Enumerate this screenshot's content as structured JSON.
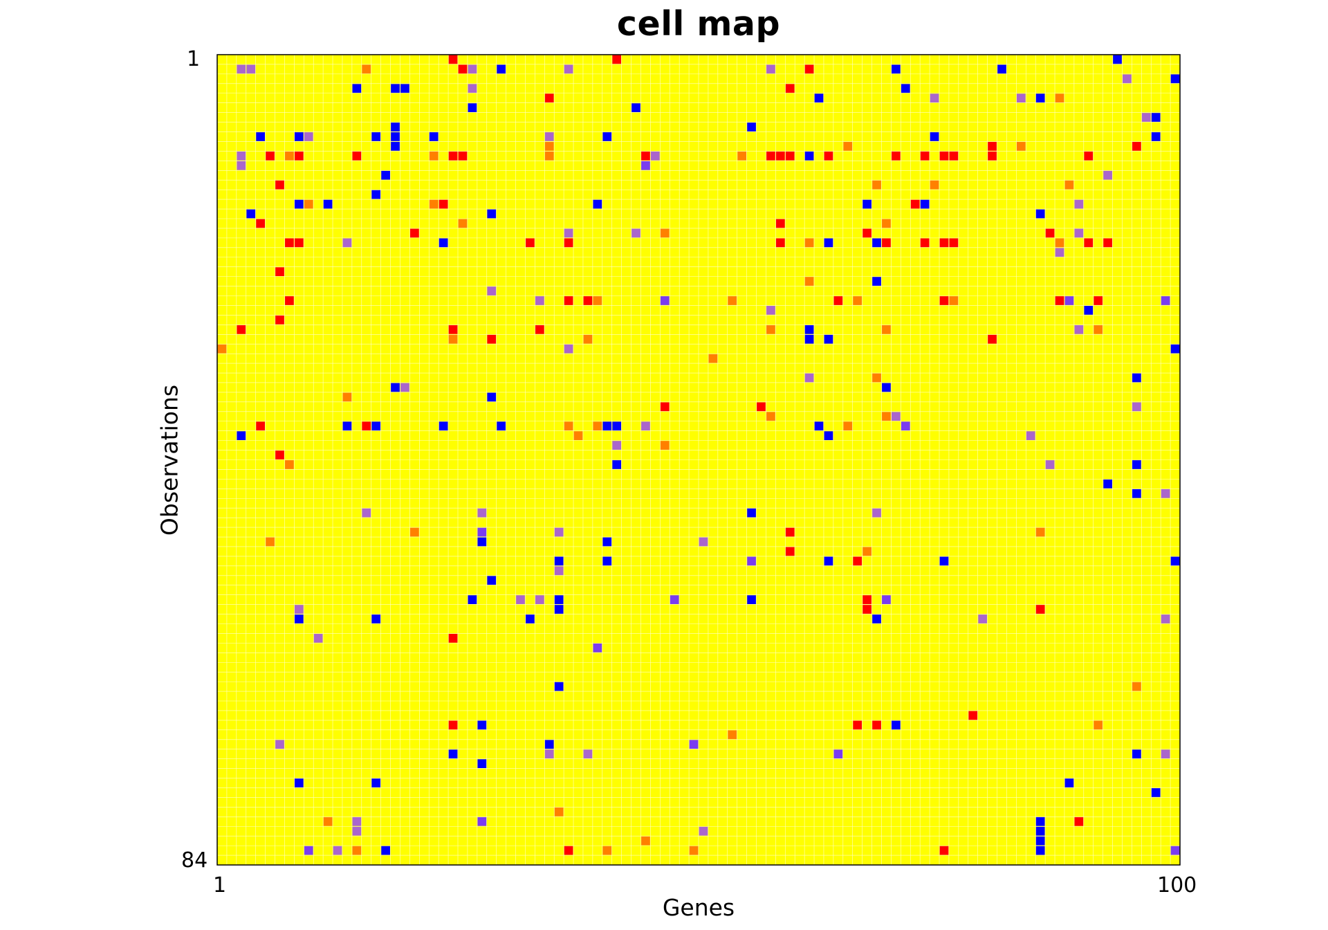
{
  "chart_data": {
    "type": "heatmap",
    "title": "cell map",
    "xlabel": "Genes",
    "ylabel": "Observations",
    "x_tick_labels": [
      "1",
      "100"
    ],
    "y_tick_labels": [
      "1",
      "84"
    ],
    "xlim": [
      1,
      100
    ],
    "ylim": [
      1,
      84
    ],
    "n_cols": 100,
    "n_rows": 84,
    "grid": true,
    "legend": "none",
    "background_value": 0,
    "colors": {
      "0": "#ffff00",
      "1": "#ff0000",
      "2": "#ff8000",
      "3": "#aa66cc",
      "4": "#7a3cf0",
      "5": "#0000ff",
      "grid": "#ffffcc",
      "frame": "#000000"
    },
    "cells": [
      [
        1,
        25,
        1
      ],
      [
        1,
        42,
        1
      ],
      [
        1,
        94,
        5
      ],
      [
        2,
        3,
        3
      ],
      [
        2,
        4,
        3
      ],
      [
        2,
        16,
        2
      ],
      [
        2,
        26,
        1
      ],
      [
        2,
        27,
        3
      ],
      [
        2,
        30,
        5
      ],
      [
        2,
        37,
        3
      ],
      [
        2,
        58,
        3
      ],
      [
        2,
        62,
        1
      ],
      [
        2,
        71,
        5
      ],
      [
        2,
        82,
        5
      ],
      [
        3,
        95,
        3
      ],
      [
        3,
        100,
        5
      ],
      [
        4,
        15,
        5
      ],
      [
        4,
        19,
        5
      ],
      [
        4,
        20,
        5
      ],
      [
        4,
        27,
        3
      ],
      [
        4,
        60,
        1
      ],
      [
        4,
        72,
        5
      ],
      [
        5,
        35,
        1
      ],
      [
        5,
        63,
        5
      ],
      [
        5,
        75,
        3
      ],
      [
        5,
        84,
        3
      ],
      [
        5,
        86,
        5
      ],
      [
        5,
        88,
        2
      ],
      [
        6,
        27,
        5
      ],
      [
        6,
        44,
        5
      ],
      [
        7,
        97,
        3
      ],
      [
        7,
        98,
        5
      ],
      [
        8,
        19,
        5
      ],
      [
        8,
        56,
        5
      ],
      [
        9,
        5,
        5
      ],
      [
        9,
        9,
        5
      ],
      [
        9,
        10,
        3
      ],
      [
        9,
        17,
        5
      ],
      [
        9,
        19,
        5
      ],
      [
        9,
        23,
        5
      ],
      [
        9,
        35,
        3
      ],
      [
        9,
        41,
        5
      ],
      [
        9,
        75,
        5
      ],
      [
        9,
        98,
        5
      ],
      [
        10,
        19,
        5
      ],
      [
        10,
        35,
        2
      ],
      [
        10,
        66,
        2
      ],
      [
        10,
        81,
        1
      ],
      [
        10,
        84,
        2
      ],
      [
        10,
        96,
        1
      ],
      [
        11,
        3,
        3
      ],
      [
        11,
        6,
        1
      ],
      [
        11,
        8,
        2
      ],
      [
        11,
        9,
        1
      ],
      [
        11,
        15,
        1
      ],
      [
        11,
        23,
        2
      ],
      [
        11,
        25,
        1
      ],
      [
        11,
        26,
        1
      ],
      [
        11,
        35,
        2
      ],
      [
        11,
        45,
        1
      ],
      [
        11,
        46,
        3
      ],
      [
        11,
        55,
        2
      ],
      [
        11,
        58,
        1
      ],
      [
        11,
        59,
        1
      ],
      [
        11,
        60,
        1
      ],
      [
        11,
        62,
        5
      ],
      [
        11,
        64,
        1
      ],
      [
        11,
        71,
        1
      ],
      [
        11,
        74,
        1
      ],
      [
        11,
        76,
        1
      ],
      [
        11,
        77,
        1
      ],
      [
        11,
        81,
        1
      ],
      [
        11,
        91,
        1
      ],
      [
        12,
        3,
        3
      ],
      [
        12,
        45,
        4
      ],
      [
        13,
        18,
        5
      ],
      [
        13,
        93,
        3
      ],
      [
        14,
        7,
        1
      ],
      [
        14,
        69,
        2
      ],
      [
        14,
        75,
        2
      ],
      [
        14,
        89,
        2
      ],
      [
        15,
        17,
        5
      ],
      [
        16,
        9,
        5
      ],
      [
        16,
        10,
        2
      ],
      [
        16,
        12,
        5
      ],
      [
        16,
        23,
        2
      ],
      [
        16,
        24,
        1
      ],
      [
        16,
        40,
        5
      ],
      [
        16,
        68,
        5
      ],
      [
        16,
        73,
        1
      ],
      [
        16,
        74,
        5
      ],
      [
        16,
        90,
        3
      ],
      [
        17,
        4,
        5
      ],
      [
        17,
        29,
        5
      ],
      [
        17,
        86,
        5
      ],
      [
        18,
        5,
        1
      ],
      [
        18,
        26,
        2
      ],
      [
        18,
        59,
        1
      ],
      [
        18,
        70,
        2
      ],
      [
        19,
        21,
        1
      ],
      [
        19,
        37,
        3
      ],
      [
        19,
        44,
        3
      ],
      [
        19,
        47,
        2
      ],
      [
        19,
        68,
        1
      ],
      [
        19,
        87,
        1
      ],
      [
        19,
        90,
        3
      ],
      [
        20,
        8,
        1
      ],
      [
        20,
        9,
        1
      ],
      [
        20,
        14,
        3
      ],
      [
        20,
        24,
        5
      ],
      [
        20,
        33,
        1
      ],
      [
        20,
        37,
        1
      ],
      [
        20,
        59,
        1
      ],
      [
        20,
        62,
        2
      ],
      [
        20,
        64,
        5
      ],
      [
        20,
        69,
        5
      ],
      [
        20,
        70,
        1
      ],
      [
        20,
        74,
        1
      ],
      [
        20,
        76,
        1
      ],
      [
        20,
        77,
        1
      ],
      [
        20,
        88,
        2
      ],
      [
        20,
        91,
        1
      ],
      [
        20,
        93,
        1
      ],
      [
        21,
        88,
        3
      ],
      [
        23,
        7,
        1
      ],
      [
        24,
        62,
        2
      ],
      [
        24,
        69,
        5
      ],
      [
        25,
        29,
        3
      ],
      [
        26,
        8,
        1
      ],
      [
        26,
        34,
        3
      ],
      [
        26,
        37,
        1
      ],
      [
        26,
        39,
        1
      ],
      [
        26,
        40,
        2
      ],
      [
        26,
        47,
        4
      ],
      [
        26,
        54,
        2
      ],
      [
        26,
        65,
        1
      ],
      [
        26,
        67,
        2
      ],
      [
        26,
        76,
        1
      ],
      [
        26,
        77,
        2
      ],
      [
        26,
        88,
        1
      ],
      [
        26,
        89,
        4
      ],
      [
        26,
        92,
        1
      ],
      [
        26,
        99,
        4
      ],
      [
        27,
        58,
        3
      ],
      [
        27,
        91,
        5
      ],
      [
        28,
        7,
        1
      ],
      [
        29,
        3,
        1
      ],
      [
        29,
        25,
        1
      ],
      [
        29,
        34,
        1
      ],
      [
        29,
        58,
        2
      ],
      [
        29,
        62,
        5
      ],
      [
        29,
        70,
        2
      ],
      [
        29,
        90,
        3
      ],
      [
        29,
        92,
        2
      ],
      [
        30,
        25,
        2
      ],
      [
        30,
        29,
        1
      ],
      [
        30,
        39,
        2
      ],
      [
        30,
        62,
        5
      ],
      [
        30,
        64,
        5
      ],
      [
        30,
        81,
        1
      ],
      [
        31,
        1,
        2
      ],
      [
        31,
        37,
        3
      ],
      [
        31,
        100,
        5
      ],
      [
        32,
        52,
        2
      ],
      [
        34,
        62,
        3
      ],
      [
        34,
        69,
        2
      ],
      [
        34,
        96,
        5
      ],
      [
        35,
        19,
        5
      ],
      [
        35,
        20,
        3
      ],
      [
        35,
        70,
        5
      ],
      [
        36,
        14,
        2
      ],
      [
        36,
        29,
        5
      ],
      [
        37,
        47,
        1
      ],
      [
        37,
        57,
        1
      ],
      [
        37,
        96,
        3
      ],
      [
        38,
        58,
        2
      ],
      [
        38,
        70,
        2
      ],
      [
        38,
        71,
        3
      ],
      [
        39,
        5,
        1
      ],
      [
        39,
        14,
        5
      ],
      [
        39,
        16,
        1
      ],
      [
        39,
        17,
        5
      ],
      [
        39,
        24,
        5
      ],
      [
        39,
        30,
        5
      ],
      [
        39,
        37,
        2
      ],
      [
        39,
        40,
        2
      ],
      [
        39,
        41,
        5
      ],
      [
        39,
        42,
        5
      ],
      [
        39,
        45,
        3
      ],
      [
        39,
        63,
        5
      ],
      [
        39,
        66,
        2
      ],
      [
        39,
        72,
        4
      ],
      [
        40,
        3,
        5
      ],
      [
        40,
        38,
        2
      ],
      [
        40,
        64,
        5
      ],
      [
        40,
        85,
        3
      ],
      [
        41,
        42,
        3
      ],
      [
        41,
        47,
        2
      ],
      [
        42,
        7,
        1
      ],
      [
        43,
        8,
        2
      ],
      [
        43,
        42,
        5
      ],
      [
        43,
        87,
        3
      ],
      [
        43,
        96,
        5
      ],
      [
        45,
        93,
        5
      ],
      [
        46,
        96,
        5
      ],
      [
        46,
        99,
        3
      ],
      [
        48,
        16,
        3
      ],
      [
        48,
        28,
        3
      ],
      [
        48,
        56,
        5
      ],
      [
        48,
        69,
        3
      ],
      [
        50,
        21,
        2
      ],
      [
        50,
        28,
        4
      ],
      [
        50,
        36,
        3
      ],
      [
        50,
        60,
        1
      ],
      [
        50,
        86,
        2
      ],
      [
        51,
        6,
        2
      ],
      [
        51,
        28,
        5
      ],
      [
        51,
        41,
        5
      ],
      [
        51,
        51,
        3
      ],
      [
        52,
        60,
        1
      ],
      [
        52,
        68,
        2
      ],
      [
        53,
        36,
        5
      ],
      [
        53,
        41,
        5
      ],
      [
        53,
        56,
        4
      ],
      [
        53,
        64,
        5
      ],
      [
        53,
        67,
        1
      ],
      [
        53,
        76,
        5
      ],
      [
        53,
        100,
        5
      ],
      [
        54,
        36,
        3
      ],
      [
        55,
        29,
        5
      ],
      [
        57,
        27,
        5
      ],
      [
        57,
        32,
        3
      ],
      [
        57,
        34,
        3
      ],
      [
        57,
        36,
        5
      ],
      [
        57,
        48,
        4
      ],
      [
        57,
        56,
        5
      ],
      [
        57,
        68,
        1
      ],
      [
        57,
        70,
        4
      ],
      [
        58,
        9,
        3
      ],
      [
        58,
        36,
        5
      ],
      [
        58,
        68,
        1
      ],
      [
        58,
        86,
        1
      ],
      [
        59,
        9,
        5
      ],
      [
        59,
        17,
        5
      ],
      [
        59,
        33,
        5
      ],
      [
        59,
        69,
        5
      ],
      [
        59,
        80,
        3
      ],
      [
        59,
        99,
        3
      ],
      [
        61,
        11,
        3
      ],
      [
        61,
        25,
        1
      ],
      [
        62,
        40,
        4
      ],
      [
        66,
        36,
        5
      ],
      [
        66,
        96,
        2
      ],
      [
        69,
        79,
        1
      ],
      [
        70,
        25,
        1
      ],
      [
        70,
        28,
        5
      ],
      [
        70,
        67,
        1
      ],
      [
        70,
        69,
        1
      ],
      [
        70,
        71,
        5
      ],
      [
        70,
        92,
        2
      ],
      [
        71,
        54,
        2
      ],
      [
        72,
        7,
        3
      ],
      [
        72,
        35,
        5
      ],
      [
        72,
        50,
        4
      ],
      [
        73,
        25,
        5
      ],
      [
        73,
        35,
        3
      ],
      [
        73,
        39,
        3
      ],
      [
        73,
        65,
        4
      ],
      [
        73,
        96,
        5
      ],
      [
        73,
        99,
        3
      ],
      [
        74,
        28,
        5
      ],
      [
        76,
        9,
        5
      ],
      [
        76,
        17,
        5
      ],
      [
        76,
        89,
        5
      ],
      [
        77,
        98,
        5
      ],
      [
        79,
        36,
        2
      ],
      [
        80,
        12,
        2
      ],
      [
        80,
        15,
        3
      ],
      [
        80,
        28,
        4
      ],
      [
        80,
        86,
        5
      ],
      [
        80,
        90,
        1
      ],
      [
        81,
        15,
        3
      ],
      [
        81,
        51,
        3
      ],
      [
        81,
        86,
        5
      ],
      [
        82,
        45,
        2
      ],
      [
        82,
        86,
        5
      ],
      [
        83,
        10,
        4
      ],
      [
        83,
        13,
        3
      ],
      [
        83,
        15,
        2
      ],
      [
        83,
        18,
        5
      ],
      [
        83,
        37,
        1
      ],
      [
        83,
        41,
        2
      ],
      [
        83,
        50,
        2
      ],
      [
        83,
        76,
        1
      ],
      [
        83,
        86,
        5
      ],
      [
        83,
        100,
        4
      ]
    ]
  }
}
